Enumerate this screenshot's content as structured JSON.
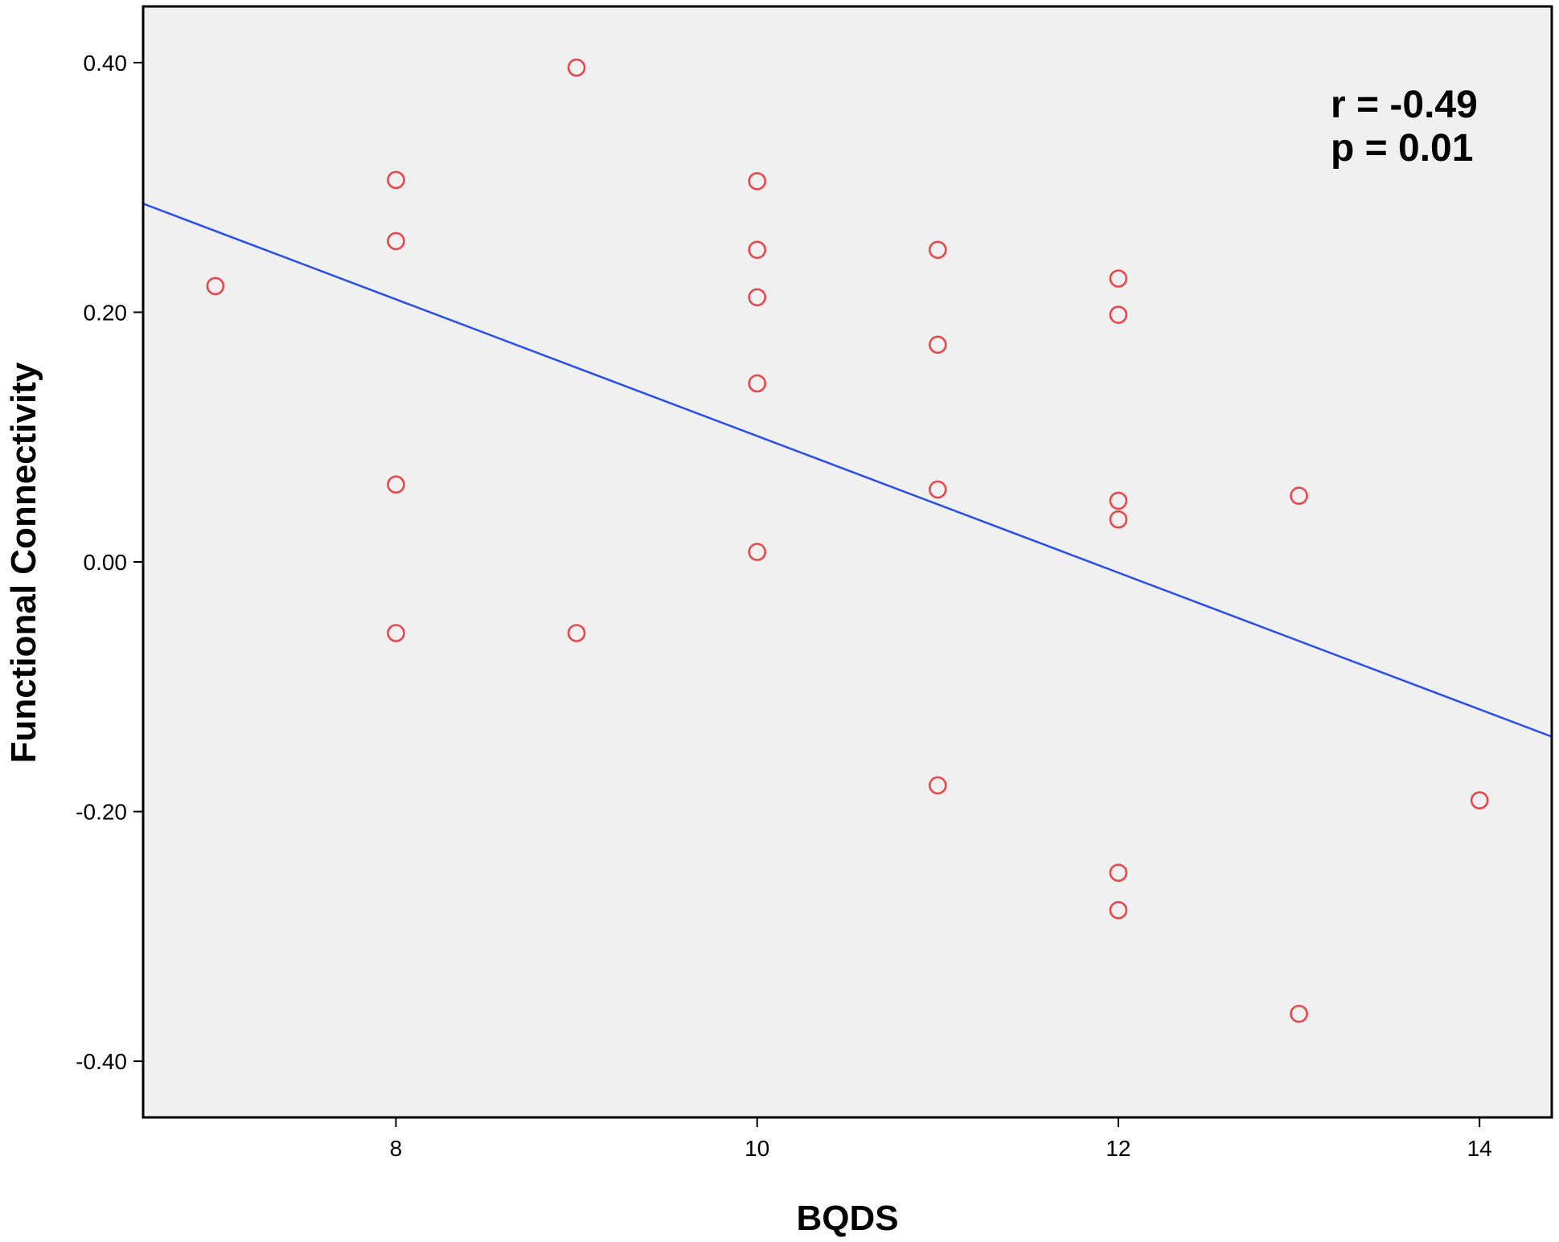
{
  "chart_data": {
    "type": "scatter",
    "title": "",
    "xlabel": "BQDS",
    "ylabel": "Functional Connectivity",
    "xlim": [
      6.6,
      14.4
    ],
    "ylim": [
      -0.445,
      0.445
    ],
    "x_ticks": [
      8,
      10,
      12,
      14
    ],
    "x_tick_labels": [
      "8",
      "10",
      "12",
      "14"
    ],
    "y_ticks": [
      0.4,
      0.2,
      0.0,
      -0.2,
      -0.4
    ],
    "y_tick_labels": [
      "0.40",
      "0.20",
      "0.00",
      "-0.20",
      "-0.40"
    ],
    "grid": false,
    "background_color": "#f0f0f0",
    "marker_color": "#e8474b",
    "line_color": "#2a4ee8",
    "points": [
      {
        "x": 7,
        "y": 0.221
      },
      {
        "x": 8,
        "y": 0.306
      },
      {
        "x": 8,
        "y": 0.257
      },
      {
        "x": 8,
        "y": 0.062
      },
      {
        "x": 8,
        "y": -0.057
      },
      {
        "x": 9,
        "y": 0.396
      },
      {
        "x": 9,
        "y": -0.057
      },
      {
        "x": 10,
        "y": 0.305
      },
      {
        "x": 10,
        "y": 0.25
      },
      {
        "x": 10,
        "y": 0.212
      },
      {
        "x": 10,
        "y": 0.143
      },
      {
        "x": 10,
        "y": 0.008
      },
      {
        "x": 11,
        "y": 0.25
      },
      {
        "x": 11,
        "y": 0.174
      },
      {
        "x": 11,
        "y": 0.058
      },
      {
        "x": 11,
        "y": -0.179
      },
      {
        "x": 12,
        "y": 0.227
      },
      {
        "x": 12,
        "y": 0.198
      },
      {
        "x": 12,
        "y": 0.049
      },
      {
        "x": 12,
        "y": 0.034
      },
      {
        "x": 12,
        "y": -0.249
      },
      {
        "x": 12,
        "y": -0.279
      },
      {
        "x": 13,
        "y": 0.053
      },
      {
        "x": 13,
        "y": -0.362
      },
      {
        "x": 14,
        "y": -0.191
      }
    ],
    "fit_line": {
      "x": [
        6.6,
        14.4
      ],
      "y": [
        0.287,
        -0.14
      ]
    },
    "annotations": {
      "r_text": "r = -0.49",
      "p_text": "p = 0.01"
    }
  }
}
